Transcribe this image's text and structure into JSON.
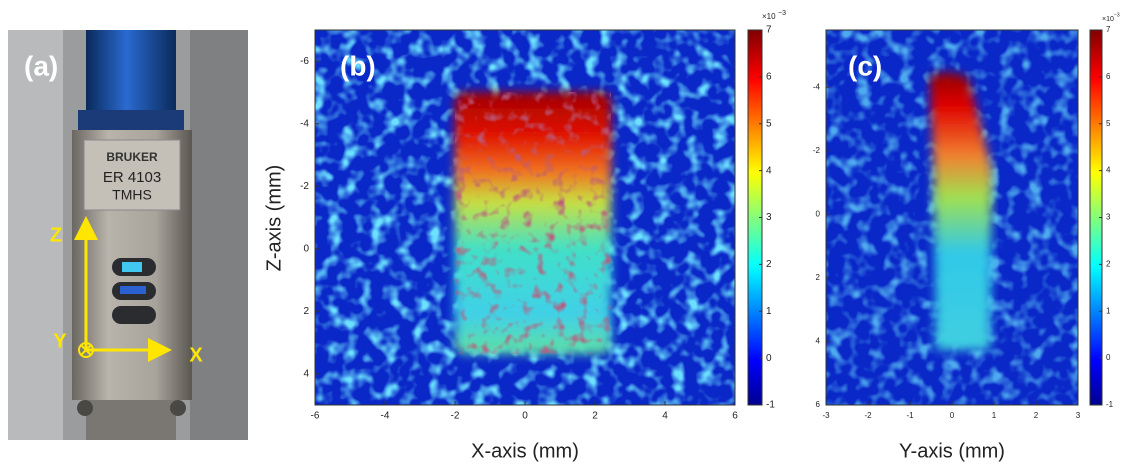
{
  "panel_a": {
    "label": "(a)",
    "photo_text": [
      "BRUKER",
      "ER 4103",
      "TMHS"
    ],
    "axis_names": [
      "Z",
      "Y",
      "X"
    ]
  },
  "panel_b": {
    "label": "(b)",
    "x_label": "X-axis (mm)",
    "y_label": "Z-axis (mm)",
    "xlim": [
      -6,
      6
    ],
    "xticks": [
      -6,
      -4,
      -2,
      0,
      2,
      4,
      6
    ],
    "ylim": [
      -7,
      5
    ],
    "yticks": [
      -6,
      -4,
      -2,
      0,
      2,
      4
    ],
    "colorbar": {
      "lim": [
        -1,
        7
      ],
      "ticks": [
        -1,
        0,
        1,
        2,
        3,
        4,
        5,
        6,
        7
      ],
      "scale_base": "×10",
      "scale_exponent": "−3"
    }
  },
  "panel_c": {
    "label": "(c)",
    "x_label": "Y-axis (mm)",
    "xlim": [
      -3,
      3
    ],
    "xticks": [
      -3,
      -2,
      -1,
      0,
      1,
      2,
      3
    ],
    "ylim": [
      -5.8,
      6
    ],
    "yticks": [
      -4,
      -2,
      0,
      2,
      4,
      6
    ],
    "colorbar": {
      "lim": [
        -1,
        7
      ],
      "ticks": [
        -1,
        0,
        1,
        2,
        3,
        4,
        5,
        6,
        7
      ],
      "scale_base": "×10",
      "scale_exponent": "−3"
    }
  }
}
